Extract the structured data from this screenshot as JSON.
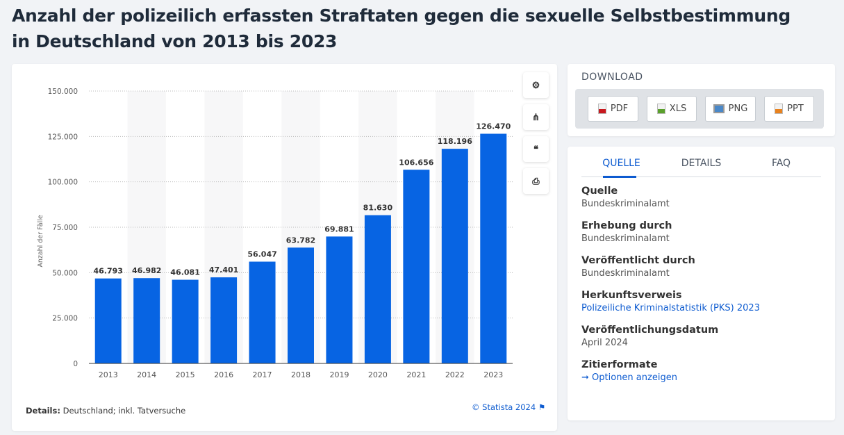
{
  "title": "Anzahl der polizeilich erfassten Straftaten gegen die sexuelle Selbstbestimmung in Deutschland von 2013 bis 2023",
  "chart_data": {
    "type": "bar",
    "categories": [
      "2013",
      "2014",
      "2015",
      "2016",
      "2017",
      "2018",
      "2019",
      "2020",
      "2021",
      "2022",
      "2023"
    ],
    "values": [
      46793,
      46982,
      46081,
      47401,
      56047,
      63782,
      69881,
      81630,
      106656,
      118196,
      126470
    ],
    "value_labels": [
      "46.793",
      "46.982",
      "46.081",
      "47.401",
      "56.047",
      "63.782",
      "69.881",
      "81.630",
      "106.656",
      "118.196",
      "126.470"
    ],
    "xlabel": "",
    "ylabel": "Anzahl der Fälle",
    "ylim": [
      0,
      150000
    ],
    "yticks": [
      0,
      25000,
      50000,
      75000,
      100000,
      125000,
      150000
    ],
    "ytick_labels": [
      "0",
      "25.000",
      "50.000",
      "75.000",
      "100.000",
      "125.000",
      "150.000"
    ],
    "grid": true,
    "bar_color": "#0764e3"
  },
  "details_label": "Details:",
  "details_text": "Deutschland; inkl. Tatversuche",
  "credit": "© Statista 2024",
  "tools": {
    "settings": "⚙",
    "share": "⋔",
    "cite": "❝",
    "print": "⎙"
  },
  "download": {
    "heading": "DOWNLOAD",
    "buttons": [
      "PDF",
      "XLS",
      "PNG",
      "PPT"
    ]
  },
  "tabs": [
    "QUELLE",
    "DETAILS",
    "FAQ"
  ],
  "source": [
    {
      "label": "Quelle",
      "value": "Bundeskriminalamt"
    },
    {
      "label": "Erhebung durch",
      "value": "Bundeskriminalamt"
    },
    {
      "label": "Veröffentlicht durch",
      "value": "Bundeskriminalamt"
    },
    {
      "label": "Herkunftsverweis",
      "value": "Polizeiliche Kriminalstatistik (PKS) 2023"
    },
    {
      "label": "Veröffentlichungsdatum",
      "value": "April 2024"
    },
    {
      "label": "Zitierformate",
      "value": "Optionen anzeigen"
    }
  ]
}
